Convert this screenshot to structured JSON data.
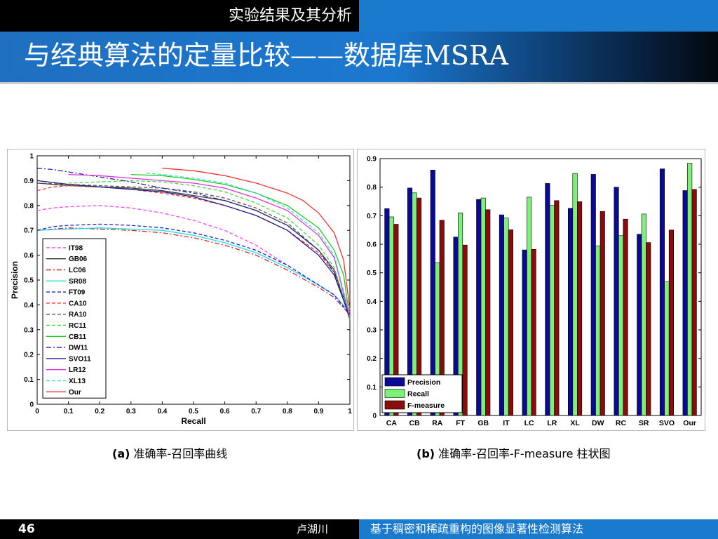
{
  "header": {
    "section": "实验结果及其分析",
    "title": "与经典算法的定量比较——数据库MSRA"
  },
  "captions": {
    "a_prefix": "(a)",
    "a_text": " 准确率-召回率曲线",
    "b_prefix": "(b)",
    "b_text": " 准确率-召回率-F-measure 柱状图"
  },
  "footer": {
    "page": "46",
    "author": "卢湖川",
    "title": "基于稠密和稀疏重构的图像显著性检测算法"
  },
  "chart_data": [
    {
      "type": "line",
      "title": "",
      "xlabel": "Recall",
      "ylabel": "Precision",
      "xlim": [
        0,
        1
      ],
      "ylim": [
        0,
        1
      ],
      "xticks": [
        "0",
        "0.1",
        "0.2",
        "0.3",
        "0.4",
        "0.5",
        "0.6",
        "0.7",
        "0.8",
        "0.9",
        "1"
      ],
      "yticks": [
        "0",
        "0.1",
        "0.2",
        "0.3",
        "0.4",
        "0.5",
        "0.6",
        "0.7",
        "0.8",
        "0.9",
        "1"
      ],
      "legend_position": "lower-left",
      "grid": false,
      "series": [
        {
          "name": "IT98",
          "color": "#ff44ff",
          "dash": "dashed",
          "points": [
            [
              0,
              0.78
            ],
            [
              0.05,
              0.79
            ],
            [
              0.1,
              0.795
            ],
            [
              0.2,
              0.8
            ],
            [
              0.3,
              0.79
            ],
            [
              0.4,
              0.77
            ],
            [
              0.5,
              0.74
            ],
            [
              0.6,
              0.7
            ],
            [
              0.7,
              0.64
            ],
            [
              0.8,
              0.56
            ],
            [
              0.9,
              0.48
            ],
            [
              0.95,
              0.44
            ],
            [
              1,
              0.36
            ]
          ]
        },
        {
          "name": "GB06",
          "color": "#333333",
          "dash": "solid",
          "points": [
            [
              0,
              0.89
            ],
            [
              0.1,
              0.88
            ],
            [
              0.2,
              0.875
            ],
            [
              0.3,
              0.87
            ],
            [
              0.4,
              0.86
            ],
            [
              0.5,
              0.84
            ],
            [
              0.6,
              0.82
            ],
            [
              0.7,
              0.78
            ],
            [
              0.8,
              0.72
            ],
            [
              0.9,
              0.62
            ],
            [
              0.95,
              0.54
            ],
            [
              1,
              0.34
            ]
          ]
        },
        {
          "name": "LC06",
          "color": "#dd2222",
          "dash": "dashdot",
          "points": [
            [
              0,
              0.7
            ],
            [
              0.1,
              0.71
            ],
            [
              0.2,
              0.705
            ],
            [
              0.3,
              0.7
            ],
            [
              0.4,
              0.69
            ],
            [
              0.5,
              0.67
            ],
            [
              0.6,
              0.64
            ],
            [
              0.7,
              0.6
            ],
            [
              0.8,
              0.54
            ],
            [
              0.9,
              0.47
            ],
            [
              0.95,
              0.43
            ],
            [
              1,
              0.36
            ]
          ]
        },
        {
          "name": "SR08",
          "color": "#22dddd",
          "dash": "solid",
          "points": [
            [
              0,
              0.7
            ],
            [
              0.1,
              0.705
            ],
            [
              0.2,
              0.71
            ],
            [
              0.3,
              0.705
            ],
            [
              0.4,
              0.7
            ],
            [
              0.5,
              0.68
            ],
            [
              0.6,
              0.65
            ],
            [
              0.7,
              0.61
            ],
            [
              0.8,
              0.55
            ],
            [
              0.9,
              0.48
            ],
            [
              0.95,
              0.44
            ],
            [
              1,
              0.37
            ]
          ]
        },
        {
          "name": "FT09",
          "color": "#2222dd",
          "dash": "dashed",
          "points": [
            [
              0,
              0.7
            ],
            [
              0.05,
              0.715
            ],
            [
              0.1,
              0.72
            ],
            [
              0.2,
              0.725
            ],
            [
              0.3,
              0.72
            ],
            [
              0.4,
              0.71
            ],
            [
              0.5,
              0.69
            ],
            [
              0.6,
              0.66
            ],
            [
              0.7,
              0.62
            ],
            [
              0.8,
              0.56
            ],
            [
              0.9,
              0.48
            ],
            [
              0.95,
              0.44
            ],
            [
              1,
              0.36
            ]
          ]
        },
        {
          "name": "CA10",
          "color": "#ff3333",
          "dash": "dashed",
          "points": [
            [
              0,
              0.86
            ],
            [
              0.05,
              0.875
            ],
            [
              0.1,
              0.88
            ],
            [
              0.2,
              0.875
            ],
            [
              0.3,
              0.865
            ],
            [
              0.4,
              0.85
            ],
            [
              0.5,
              0.83
            ],
            [
              0.6,
              0.8
            ],
            [
              0.7,
              0.76
            ],
            [
              0.8,
              0.7
            ],
            [
              0.9,
              0.61
            ],
            [
              0.95,
              0.53
            ],
            [
              1,
              0.37
            ]
          ]
        },
        {
          "name": "RA10",
          "color": "#555555",
          "dash": "dashed",
          "points": [
            [
              0,
              0.89
            ],
            [
              0.1,
              0.885
            ],
            [
              0.2,
              0.88
            ],
            [
              0.3,
              0.875
            ],
            [
              0.4,
              0.87
            ],
            [
              0.5,
              0.855
            ],
            [
              0.6,
              0.83
            ],
            [
              0.7,
              0.79
            ],
            [
              0.8,
              0.73
            ],
            [
              0.9,
              0.62
            ],
            [
              0.95,
              0.54
            ],
            [
              1,
              0.36
            ]
          ]
        },
        {
          "name": "RC11",
          "color": "#44dd44",
          "dash": "dashed",
          "points": [
            [
              0.1,
              0.89
            ],
            [
              0.2,
              0.895
            ],
            [
              0.3,
              0.9
            ],
            [
              0.4,
              0.895
            ],
            [
              0.5,
              0.88
            ],
            [
              0.6,
              0.855
            ],
            [
              0.7,
              0.81
            ],
            [
              0.8,
              0.75
            ],
            [
              0.9,
              0.64
            ],
            [
              0.95,
              0.55
            ],
            [
              1,
              0.35
            ]
          ]
        },
        {
          "name": "CB11",
          "color": "#22cc22",
          "dash": "solid",
          "points": [
            [
              0.3,
              0.925
            ],
            [
              0.4,
              0.92
            ],
            [
              0.5,
              0.905
            ],
            [
              0.6,
              0.885
            ],
            [
              0.7,
              0.85
            ],
            [
              0.8,
              0.8
            ],
            [
              0.9,
              0.71
            ],
            [
              0.95,
              0.62
            ],
            [
              0.98,
              0.52
            ],
            [
              1,
              0.34
            ]
          ]
        },
        {
          "name": "DW11",
          "color": "#2222aa",
          "dash": "dashdot",
          "points": [
            [
              0,
              0.95
            ],
            [
              0.05,
              0.945
            ],
            [
              0.1,
              0.935
            ],
            [
              0.2,
              0.915
            ],
            [
              0.3,
              0.895
            ],
            [
              0.4,
              0.87
            ],
            [
              0.5,
              0.85
            ],
            [
              0.6,
              0.82
            ],
            [
              0.7,
              0.78
            ],
            [
              0.8,
              0.72
            ],
            [
              0.9,
              0.62
            ],
            [
              0.95,
              0.53
            ],
            [
              1,
              0.35
            ]
          ]
        },
        {
          "name": "SVO11",
          "color": "#222288",
          "dash": "solid",
          "points": [
            [
              0,
              0.9
            ],
            [
              0.1,
              0.885
            ],
            [
              0.2,
              0.875
            ],
            [
              0.3,
              0.865
            ],
            [
              0.4,
              0.855
            ],
            [
              0.5,
              0.835
            ],
            [
              0.6,
              0.8
            ],
            [
              0.7,
              0.76
            ],
            [
              0.8,
              0.7
            ],
            [
              0.9,
              0.6
            ],
            [
              0.95,
              0.52
            ],
            [
              1,
              0.35
            ]
          ]
        },
        {
          "name": "LR12",
          "color": "#dd33dd",
          "dash": "solid",
          "points": [
            [
              0.1,
              0.925
            ],
            [
              0.2,
              0.92
            ],
            [
              0.3,
              0.91
            ],
            [
              0.4,
              0.9
            ],
            [
              0.5,
              0.89
            ],
            [
              0.6,
              0.87
            ],
            [
              0.7,
              0.83
            ],
            [
              0.8,
              0.78
            ],
            [
              0.9,
              0.68
            ],
            [
              0.95,
              0.59
            ],
            [
              1,
              0.35
            ]
          ]
        },
        {
          "name": "XL13",
          "color": "#44dddd",
          "dash": "dashed",
          "points": [
            [
              0.35,
              0.93
            ],
            [
              0.4,
              0.925
            ],
            [
              0.5,
              0.91
            ],
            [
              0.6,
              0.89
            ],
            [
              0.7,
              0.85
            ],
            [
              0.8,
              0.79
            ],
            [
              0.9,
              0.69
            ],
            [
              0.95,
              0.6
            ],
            [
              1,
              0.36
            ]
          ]
        },
        {
          "name": "Our",
          "color": "#ee3333",
          "dash": "solid",
          "points": [
            [
              0.4,
              0.95
            ],
            [
              0.5,
              0.94
            ],
            [
              0.6,
              0.92
            ],
            [
              0.7,
              0.89
            ],
            [
              0.8,
              0.85
            ],
            [
              0.85,
              0.82
            ],
            [
              0.9,
              0.77
            ],
            [
              0.95,
              0.69
            ],
            [
              0.98,
              0.58
            ],
            [
              1,
              0.38
            ]
          ]
        }
      ]
    },
    {
      "type": "bar",
      "title": "",
      "xlabel": "",
      "ylabel": "",
      "ylim": [
        0,
        0.9
      ],
      "yticks": [
        "0",
        "0.1",
        "0.2",
        "0.3",
        "0.4",
        "0.5",
        "0.6",
        "0.7",
        "0.8",
        "0.9"
      ],
      "legend_position": "lower-left",
      "categories": [
        "CA",
        "CB",
        "RA",
        "FT",
        "GB",
        "IT",
        "LC",
        "LR",
        "XL",
        "DW",
        "RC",
        "SR",
        "SVO",
        "Our"
      ],
      "series": [
        {
          "name": "Precision",
          "color": "#0a0a96",
          "values": [
            0.725,
            0.797,
            0.86,
            0.625,
            0.757,
            0.703,
            0.58,
            0.813,
            0.726,
            0.845,
            0.8,
            0.635,
            0.864,
            0.788
          ]
        },
        {
          "name": "Recall",
          "color": "#7ef07a",
          "values": [
            0.696,
            0.78,
            0.535,
            0.71,
            0.762,
            0.692,
            0.765,
            0.736,
            0.848,
            0.594,
            0.63,
            0.706,
            0.468,
            0.884
          ]
        },
        {
          "name": "F-measure",
          "color": "#8a0c0c",
          "values": [
            0.67,
            0.762,
            0.684,
            0.597,
            0.721,
            0.651,
            0.582,
            0.753,
            0.749,
            0.715,
            0.688,
            0.606,
            0.65,
            0.792
          ]
        }
      ]
    }
  ]
}
